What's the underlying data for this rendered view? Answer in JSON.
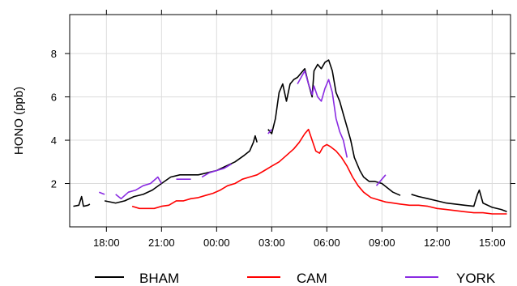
{
  "chart_data": {
    "type": "line",
    "title": "",
    "xlabel": "",
    "ylabel": "HONO (ppb)",
    "x_unit": "hour",
    "xlim": [
      16.0,
      40.0
    ],
    "ylim": [
      0,
      9.8
    ],
    "grid": true,
    "legend_position": "bottom",
    "x_ticks": [
      {
        "value": 18,
        "label": "18:00"
      },
      {
        "value": 21,
        "label": "21:00"
      },
      {
        "value": 24,
        "label": "00:00"
      },
      {
        "value": 27,
        "label": "03:00"
      },
      {
        "value": 30,
        "label": "06:00"
      },
      {
        "value": 33,
        "label": "09:00"
      },
      {
        "value": 36,
        "label": "12:00"
      },
      {
        "value": 39,
        "label": "15:00"
      }
    ],
    "y_ticks": [
      {
        "value": 2,
        "label": "2"
      },
      {
        "value": 4,
        "label": "4"
      },
      {
        "value": 6,
        "label": "6"
      },
      {
        "value": 8,
        "label": "8"
      }
    ],
    "series": [
      {
        "name": "BHAM",
        "color": "#000000",
        "segments": [
          [
            [
              16.2,
              0.95
            ],
            [
              16.5,
              1.0
            ],
            [
              16.65,
              1.4
            ],
            [
              16.75,
              0.95
            ],
            [
              17.0,
              1.0
            ],
            [
              17.1,
              1.05
            ]
          ],
          [
            [
              17.9,
              1.2
            ],
            [
              18.5,
              1.1
            ],
            [
              19.0,
              1.2
            ],
            [
              19.5,
              1.4
            ],
            [
              20.0,
              1.5
            ],
            [
              20.5,
              1.7
            ],
            [
              21.0,
              2.0
            ],
            [
              21.5,
              2.3
            ],
            [
              22.0,
              2.4
            ],
            [
              22.5,
              2.4
            ],
            [
              23.0,
              2.4
            ],
            [
              23.5,
              2.5
            ],
            [
              24.0,
              2.6
            ],
            [
              24.5,
              2.8
            ],
            [
              25.0,
              3.0
            ],
            [
              25.5,
              3.3
            ],
            [
              25.8,
              3.5
            ],
            [
              26.0,
              3.9
            ],
            [
              26.1,
              4.2
            ],
            [
              26.2,
              3.9
            ]
          ],
          [
            [
              26.8,
              4.5
            ],
            [
              27.0,
              4.3
            ],
            [
              27.2,
              5.0
            ],
            [
              27.4,
              6.2
            ],
            [
              27.6,
              6.6
            ],
            [
              27.8,
              5.8
            ],
            [
              28.0,
              6.6
            ],
            [
              28.2,
              6.8
            ],
            [
              28.4,
              6.9
            ],
            [
              28.6,
              7.1
            ],
            [
              28.8,
              7.3
            ],
            [
              29.0,
              6.6
            ],
            [
              29.2,
              6.0
            ],
            [
              29.3,
              7.2
            ],
            [
              29.5,
              7.5
            ],
            [
              29.7,
              7.3
            ],
            [
              29.9,
              7.6
            ],
            [
              30.1,
              7.7
            ],
            [
              30.3,
              7.2
            ],
            [
              30.5,
              6.2
            ],
            [
              30.7,
              5.8
            ],
            [
              30.9,
              5.2
            ],
            [
              31.1,
              4.6
            ],
            [
              31.3,
              4.0
            ],
            [
              31.5,
              3.2
            ],
            [
              31.8,
              2.6
            ],
            [
              32.0,
              2.3
            ],
            [
              32.3,
              2.1
            ],
            [
              32.6,
              2.1
            ],
            [
              33.0,
              2.0
            ],
            [
              33.3,
              1.8
            ],
            [
              33.6,
              1.6
            ],
            [
              34.0,
              1.45
            ]
          ],
          [
            [
              34.6,
              1.5
            ],
            [
              35.0,
              1.4
            ],
            [
              35.5,
              1.3
            ],
            [
              36.0,
              1.2
            ],
            [
              36.5,
              1.1
            ],
            [
              37.0,
              1.05
            ],
            [
              37.5,
              1.0
            ],
            [
              38.0,
              0.95
            ],
            [
              38.2,
              1.5
            ],
            [
              38.3,
              1.7
            ],
            [
              38.5,
              1.1
            ],
            [
              39.0,
              0.9
            ],
            [
              39.5,
              0.8
            ],
            [
              39.8,
              0.7
            ]
          ]
        ]
      },
      {
        "name": "CAM",
        "color": "#ff0000",
        "segments": [
          [
            [
              19.4,
              0.95
            ],
            [
              19.8,
              0.85
            ],
            [
              20.2,
              0.85
            ],
            [
              20.6,
              0.85
            ],
            [
              21.0,
              0.95
            ],
            [
              21.4,
              1.0
            ],
            [
              21.8,
              1.2
            ],
            [
              22.2,
              1.2
            ],
            [
              22.6,
              1.3
            ],
            [
              23.0,
              1.35
            ],
            [
              23.4,
              1.45
            ],
            [
              23.8,
              1.55
            ],
            [
              24.2,
              1.7
            ],
            [
              24.6,
              1.9
            ],
            [
              25.0,
              2.0
            ],
            [
              25.4,
              2.2
            ],
            [
              25.8,
              2.3
            ],
            [
              26.2,
              2.4
            ],
            [
              26.6,
              2.6
            ],
            [
              27.0,
              2.8
            ],
            [
              27.4,
              3.0
            ],
            [
              27.8,
              3.3
            ],
            [
              28.2,
              3.6
            ],
            [
              28.5,
              3.9
            ],
            [
              28.8,
              4.3
            ],
            [
              29.0,
              4.5
            ],
            [
              29.2,
              4.0
            ],
            [
              29.4,
              3.5
            ],
            [
              29.6,
              3.4
            ],
            [
              29.8,
              3.7
            ],
            [
              30.0,
              3.8
            ],
            [
              30.2,
              3.7
            ],
            [
              30.5,
              3.5
            ],
            [
              30.8,
              3.2
            ],
            [
              31.1,
              2.8
            ],
            [
              31.4,
              2.3
            ],
            [
              31.7,
              1.9
            ],
            [
              32.0,
              1.6
            ],
            [
              32.4,
              1.35
            ],
            [
              32.8,
              1.25
            ],
            [
              33.2,
              1.15
            ],
            [
              33.6,
              1.1
            ],
            [
              34.0,
              1.05
            ],
            [
              34.5,
              1.0
            ],
            [
              35.0,
              1.0
            ],
            [
              35.5,
              0.95
            ],
            [
              36.0,
              0.85
            ],
            [
              36.5,
              0.8
            ],
            [
              37.0,
              0.75
            ],
            [
              37.5,
              0.7
            ],
            [
              38.0,
              0.65
            ],
            [
              38.5,
              0.65
            ],
            [
              39.0,
              0.6
            ],
            [
              39.5,
              0.6
            ],
            [
              39.8,
              0.6
            ]
          ]
        ]
      },
      {
        "name": "YORK",
        "color": "#8a2be2",
        "segments": [
          [
            [
              17.6,
              1.6
            ],
            [
              17.9,
              1.5
            ]
          ],
          [
            [
              18.5,
              1.5
            ],
            [
              18.8,
              1.3
            ],
            [
              19.2,
              1.6
            ],
            [
              19.6,
              1.7
            ],
            [
              20.0,
              1.9
            ],
            [
              20.4,
              2.0
            ],
            [
              20.8,
              2.3
            ],
            [
              21.0,
              2.0
            ]
          ],
          [
            [
              21.8,
              2.2
            ],
            [
              22.2,
              2.2
            ],
            [
              22.6,
              2.2
            ]
          ],
          [
            [
              23.2,
              2.3
            ],
            [
              23.6,
              2.5
            ],
            [
              24.0,
              2.6
            ],
            [
              24.4,
              2.7
            ],
            [
              24.8,
              2.9
            ]
          ],
          [
            [
              26.8,
              4.3
            ],
            [
              27.0,
              4.5
            ]
          ],
          [
            [
              28.4,
              6.6
            ],
            [
              28.6,
              6.9
            ],
            [
              28.8,
              7.2
            ],
            [
              29.0,
              6.6
            ],
            [
              29.2,
              6.1
            ],
            [
              29.3,
              6.5
            ],
            [
              29.5,
              6.0
            ],
            [
              29.7,
              5.8
            ],
            [
              29.9,
              6.4
            ],
            [
              30.1,
              6.8
            ],
            [
              30.3,
              6.2
            ],
            [
              30.5,
              5.0
            ],
            [
              30.7,
              4.4
            ],
            [
              30.9,
              4.0
            ],
            [
              31.1,
              3.2
            ]
          ],
          [
            [
              32.7,
              1.9
            ],
            [
              33.0,
              2.2
            ],
            [
              33.2,
              2.4
            ]
          ]
        ]
      }
    ]
  }
}
